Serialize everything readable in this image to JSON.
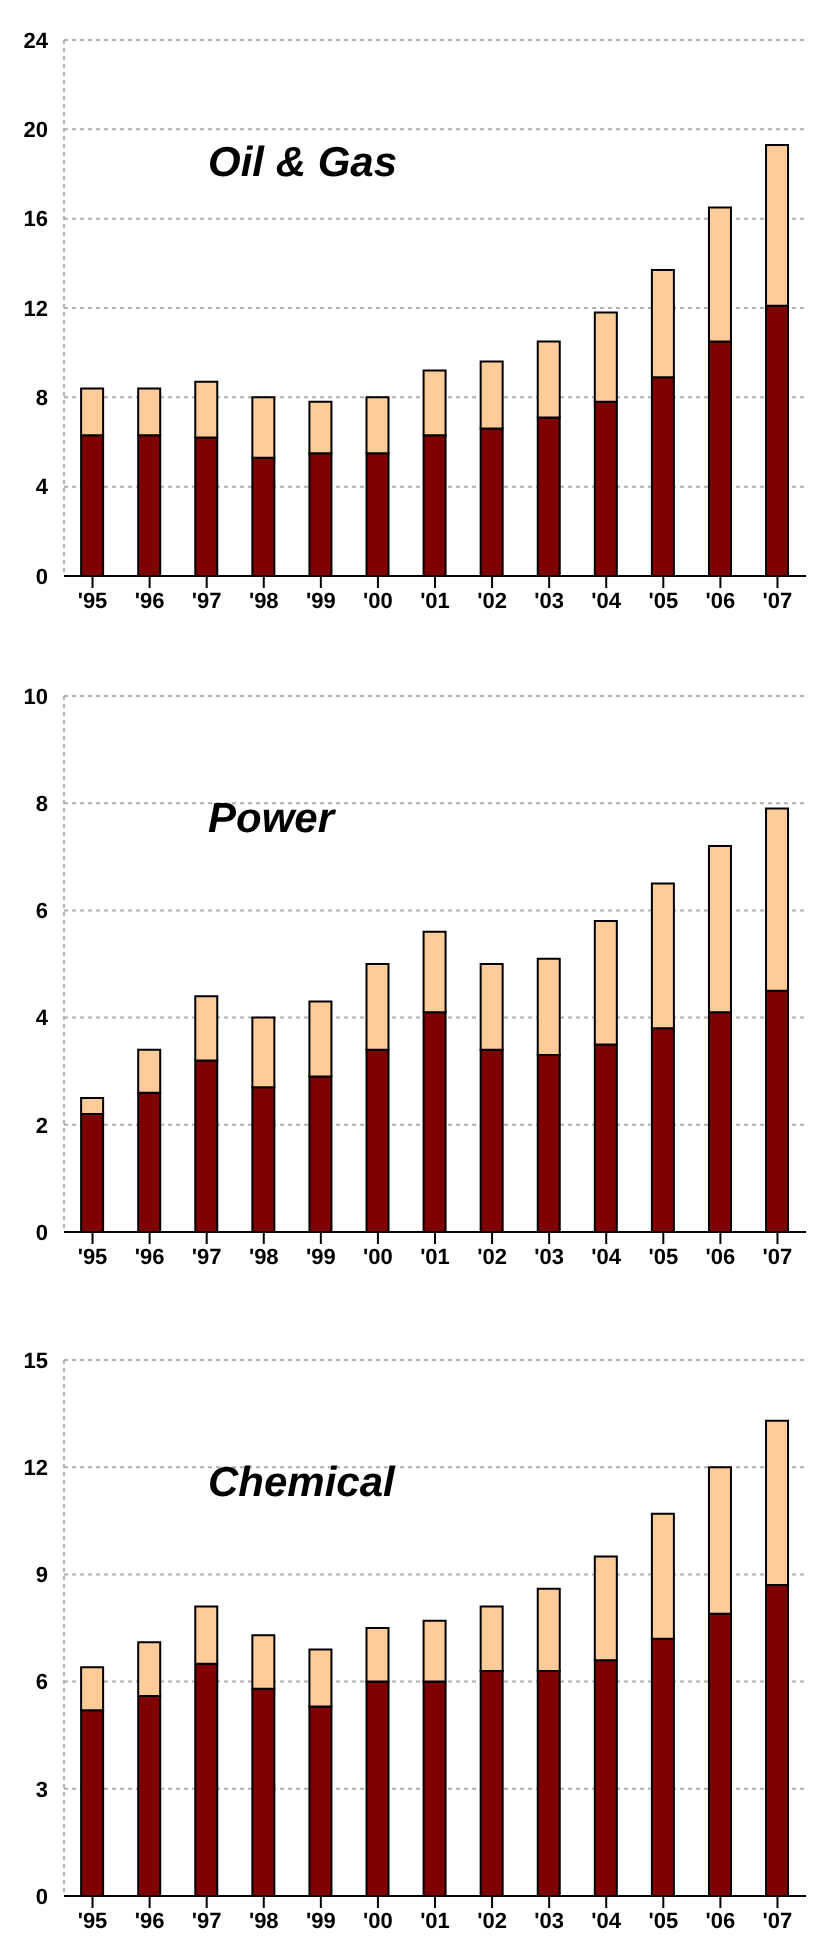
{
  "chart_data": [
    {
      "type": "bar",
      "title": "Oil & Gas",
      "stacked": true,
      "grid": "y",
      "categories": [
        "'95",
        "'96",
        "'97",
        "'98",
        "'99",
        "'00",
        "'01",
        "'02",
        "'03",
        "'04",
        "'05",
        "'06",
        "'07"
      ],
      "ylim": [
        0,
        24
      ],
      "yticks": [
        0,
        4,
        8,
        12,
        16,
        20,
        24
      ],
      "series": [
        {
          "color": "#800000",
          "values": [
            6.3,
            6.3,
            6.2,
            5.3,
            5.5,
            5.5,
            6.3,
            6.6,
            7.1,
            7.8,
            8.9,
            10.5,
            12.1
          ]
        },
        {
          "color": "#ffcc99",
          "values": [
            2.1,
            2.1,
            2.5,
            2.7,
            2.3,
            2.5,
            2.9,
            3.0,
            3.4,
            4.0,
            4.8,
            6.0,
            7.2
          ]
        }
      ]
    },
    {
      "type": "bar",
      "title": "Power",
      "stacked": true,
      "grid": "y",
      "categories": [
        "'95",
        "'96",
        "'97",
        "'98",
        "'99",
        "'00",
        "'01",
        "'02",
        "'03",
        "'04",
        "'05",
        "'06",
        "'07"
      ],
      "ylim": [
        0,
        10
      ],
      "yticks": [
        0,
        2,
        4,
        6,
        8,
        10
      ],
      "series": [
        {
          "color": "#800000",
          "values": [
            2.2,
            2.6,
            3.2,
            2.7,
            2.9,
            3.4,
            4.1,
            3.4,
            3.3,
            3.5,
            3.8,
            4.1,
            4.5
          ]
        },
        {
          "color": "#ffcc99",
          "values": [
            0.3,
            0.8,
            1.2,
            1.3,
            1.4,
            1.6,
            1.5,
            1.6,
            1.8,
            2.3,
            2.7,
            3.1,
            3.4
          ]
        }
      ]
    },
    {
      "type": "bar",
      "title": "Chemical",
      "stacked": true,
      "grid": "y",
      "categories": [
        "'95",
        "'96",
        "'97",
        "'98",
        "'99",
        "'00",
        "'01",
        "'02",
        "'03",
        "'04",
        "'05",
        "'06",
        "'07"
      ],
      "ylim": [
        0,
        15
      ],
      "yticks": [
        0,
        3,
        6,
        9,
        12,
        15
      ],
      "series": [
        {
          "color": "#800000",
          "values": [
            5.2,
            5.6,
            6.5,
            5.8,
            5.3,
            6.0,
            6.0,
            6.3,
            6.3,
            6.6,
            7.2,
            7.9,
            8.7
          ]
        },
        {
          "color": "#ffcc99",
          "values": [
            1.2,
            1.5,
            1.6,
            1.5,
            1.6,
            1.5,
            1.7,
            1.8,
            2.3,
            2.9,
            3.5,
            4.1,
            4.6
          ]
        }
      ]
    }
  ]
}
